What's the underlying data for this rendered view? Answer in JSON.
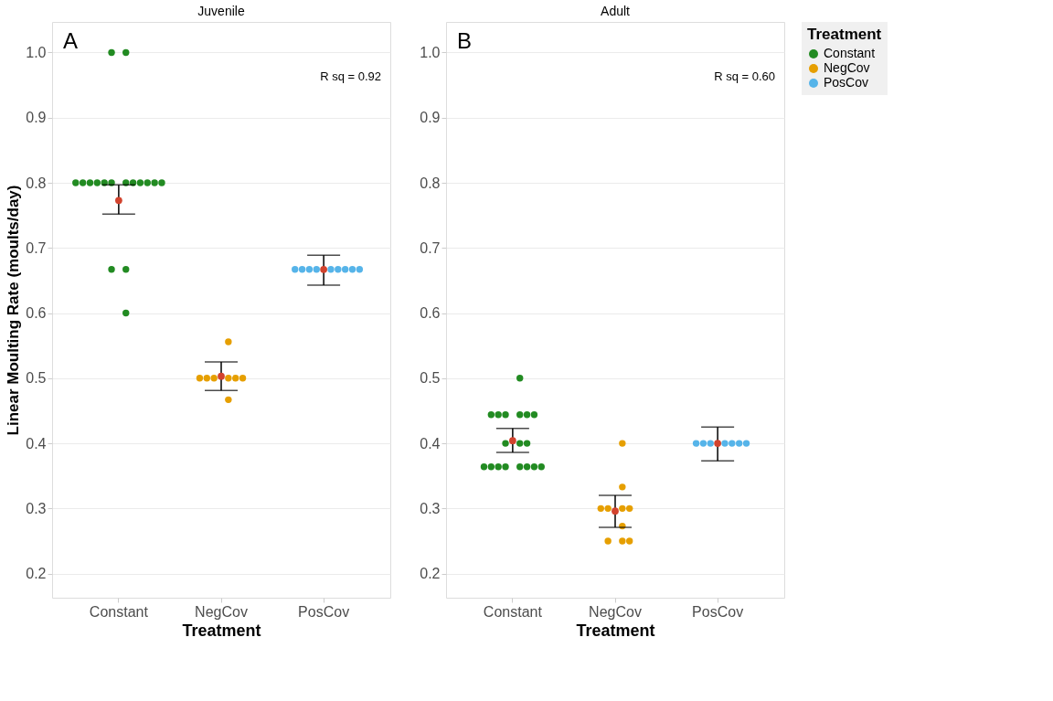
{
  "chart_data": [
    {
      "type": "scatter",
      "title": "Juvenile",
      "xlabel": "Treatment",
      "ylabel": "Linear Moulting Rate (moults/day)",
      "categories": [
        "Constant",
        "NegCov",
        "PosCov"
      ],
      "ylim": [
        0.163,
        1.047
      ],
      "yticks": [
        {
          "value": 0.2,
          "label": "0.2"
        },
        {
          "value": 0.3,
          "label": "0.3"
        },
        {
          "value": 0.4,
          "label": "0.4"
        },
        {
          "value": 0.5,
          "label": "0.5"
        },
        {
          "value": 0.6,
          "label": "0.6"
        },
        {
          "value": 0.7,
          "label": "0.7"
        },
        {
          "value": 0.8,
          "label": "0.8"
        },
        {
          "value": 0.9,
          "label": "0.9"
        },
        {
          "value": 1.0,
          "label": "1.0"
        }
      ],
      "grid": "y",
      "marker": "circle",
      "legend": "right",
      "legend_title": "Treatment",
      "annotations": [
        "A",
        "R sq = 0.92"
      ],
      "series": [
        {
          "name": "Constant",
          "color": "#228b22",
          "x": [
            "Constant",
            "Constant",
            "Constant",
            "Constant",
            "Constant",
            "Constant",
            "Constant",
            "Constant",
            "Constant",
            "Constant",
            "Constant",
            "Constant",
            "Constant",
            "Constant",
            "Constant",
            "Constant",
            "Constant"
          ],
          "values": [
            1.0,
            1.0,
            0.8,
            0.8,
            0.8,
            0.8,
            0.8,
            0.8,
            0.8,
            0.8,
            0.8,
            0.8,
            0.8,
            0.8,
            0.667,
            0.667,
            0.6
          ]
        },
        {
          "name": "NegCov",
          "color": "#e69f00",
          "x": [
            "NegCov",
            "NegCov",
            "NegCov",
            "NegCov",
            "NegCov",
            "NegCov",
            "NegCov",
            "NegCov"
          ],
          "values": [
            0.556,
            0.5,
            0.5,
            0.5,
            0.5,
            0.5,
            0.5,
            0.467
          ]
        },
        {
          "name": "PosCov",
          "color": "#56b4e9",
          "x": [
            "PosCov",
            "PosCov",
            "PosCov",
            "PosCov",
            "PosCov",
            "PosCov",
            "PosCov",
            "PosCov",
            "PosCov"
          ],
          "values": [
            0.667,
            0.667,
            0.667,
            0.667,
            0.667,
            0.667,
            0.667,
            0.667,
            0.667
          ]
        },
        {
          "color": "#d2432e",
          "x": [
            "Constant",
            "NegCov",
            "PosCov"
          ],
          "values": [
            0.773,
            0.503,
            0.667
          ],
          "errors": [
            [
              0.752,
              0.797
            ],
            [
              0.481,
              0.525
            ],
            [
              0.643,
              0.689
            ]
          ]
        }
      ]
    },
    {
      "type": "scatter",
      "title": "Adult",
      "xlabel": "Treatment",
      "categories": [
        "Constant",
        "NegCov",
        "PosCov"
      ],
      "ylim": [
        0.163,
        1.047
      ],
      "yticks": [
        {
          "value": 0.2,
          "label": "0.2"
        },
        {
          "value": 0.3,
          "label": "0.3"
        },
        {
          "value": 0.4,
          "label": "0.4"
        },
        {
          "value": 0.5,
          "label": "0.5"
        },
        {
          "value": 0.6,
          "label": "0.6"
        },
        {
          "value": 0.7,
          "label": "0.7"
        },
        {
          "value": 0.8,
          "label": "0.8"
        },
        {
          "value": 0.9,
          "label": "0.9"
        },
        {
          "value": 1.0,
          "label": "1.0"
        }
      ],
      "grid": "y",
      "marker": "circle",
      "legend": "right",
      "annotations": [
        "B",
        "R sq = 0.60"
      ],
      "series": [
        {
          "name": "Constant",
          "color": "#228b22",
          "x": [
            "Constant",
            "Constant",
            "Constant",
            "Constant",
            "Constant",
            "Constant",
            "Constant",
            "Constant",
            "Constant",
            "Constant",
            "Constant",
            "Constant",
            "Constant",
            "Constant",
            "Constant",
            "Constant",
            "Constant",
            "Constant"
          ],
          "values": [
            0.5,
            0.444,
            0.444,
            0.444,
            0.444,
            0.444,
            0.444,
            0.4,
            0.4,
            0.4,
            0.364,
            0.364,
            0.364,
            0.364,
            0.364,
            0.364,
            0.364,
            0.364
          ]
        },
        {
          "name": "NegCov",
          "color": "#e69f00",
          "x": [
            "NegCov",
            "NegCov",
            "NegCov",
            "NegCov",
            "NegCov",
            "NegCov",
            "NegCov",
            "NegCov",
            "NegCov",
            "NegCov"
          ],
          "values": [
            0.4,
            0.333,
            0.3,
            0.3,
            0.3,
            0.3,
            0.273,
            0.25,
            0.25,
            0.25
          ]
        },
        {
          "name": "PosCov",
          "color": "#56b4e9",
          "x": [
            "PosCov",
            "PosCov",
            "PosCov",
            "PosCov",
            "PosCov",
            "PosCov",
            "PosCov"
          ],
          "values": [
            0.4,
            0.4,
            0.4,
            0.4,
            0.4,
            0.4,
            0.4
          ]
        },
        {
          "color": "#d2432e",
          "x": [
            "Constant",
            "NegCov",
            "PosCov"
          ],
          "values": [
            0.404,
            0.296,
            0.4
          ],
          "errors": [
            [
              0.386,
              0.423
            ],
            [
              0.271,
              0.32
            ],
            [
              0.373,
              0.425
            ]
          ]
        }
      ]
    }
  ]
}
